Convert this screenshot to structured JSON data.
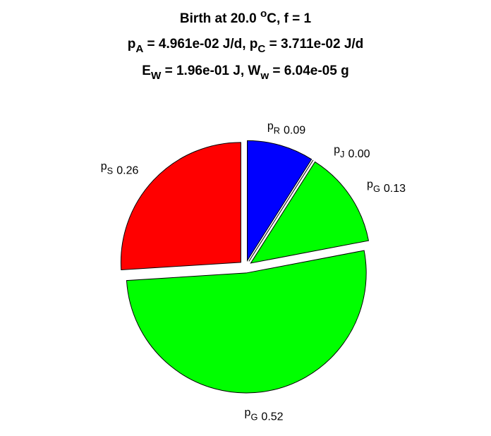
{
  "chart_data": {
    "type": "pie",
    "title": [
      "Birth at 20.0 ^oC, f = 1",
      "p_A = 4.961e-02 J/d, p_C = 3.711e-02 J/d",
      "E_W = 1.96e-01 J, W_w = 6.04e-05 g"
    ],
    "categories": [
      "p_R",
      "p_J",
      "p_G",
      "p_G",
      "p_S"
    ],
    "values": [
      0.09,
      0.0,
      0.13,
      0.52,
      0.26
    ],
    "value_labels": [
      "0.09",
      "0.00",
      "0.13",
      "0.52",
      "0.26"
    ],
    "colors": [
      "#0000ff",
      "#ff00ff",
      "#00ff00",
      "#00ff00",
      "#ff0000"
    ]
  }
}
